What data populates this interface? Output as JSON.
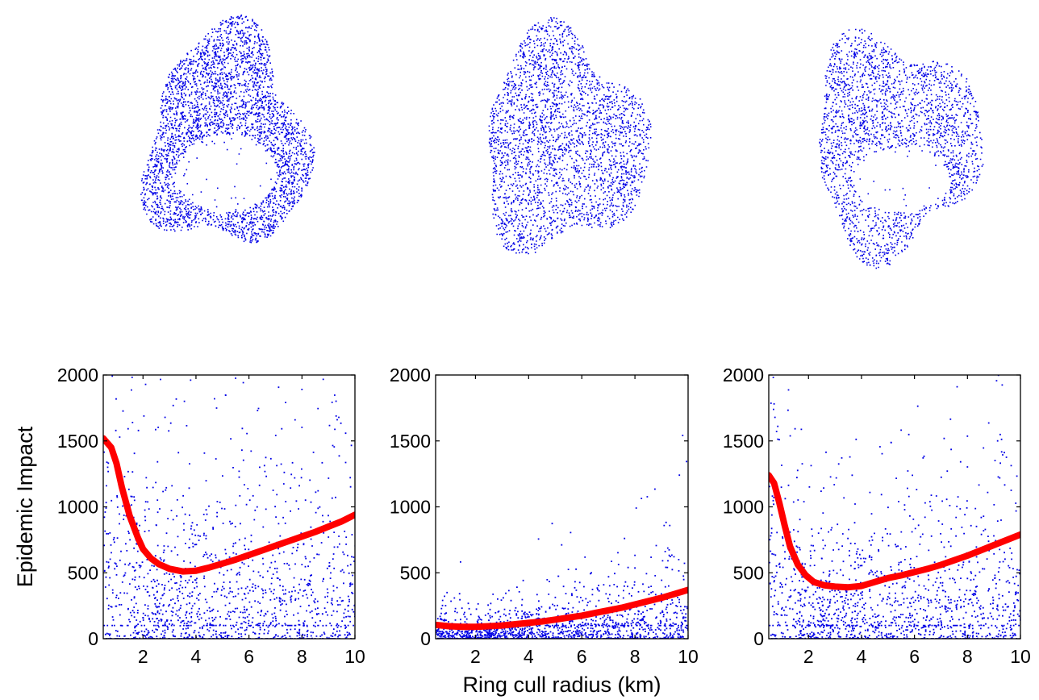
{
  "colors": {
    "points": "#0000e6",
    "curve": "#ff0000",
    "axes": "#000000",
    "background": "#ffffff"
  },
  "maps": [
    {
      "name": "map-1",
      "shape": "ring-with-hollow-center"
    },
    {
      "name": "map-2",
      "shape": "solid-blob"
    },
    {
      "name": "map-3",
      "shape": "ring-with-hollow-center"
    }
  ],
  "chart_data": [
    {
      "type": "scatter",
      "xlabel": "",
      "ylabel": "Epidemic Impact",
      "xlim": [
        0.5,
        10
      ],
      "ylim": [
        0,
        2000
      ],
      "xticks": [
        2,
        4,
        6,
        8,
        10
      ],
      "yticks": [
        0,
        500,
        1000,
        1500,
        2000
      ],
      "grid": false,
      "trend_line": {
        "x": [
          0.5,
          0.8,
          1.0,
          1.2,
          1.5,
          1.8,
          2.0,
          2.3,
          2.6,
          3.0,
          3.5,
          4.0,
          4.5,
          5.0,
          5.5,
          6.0,
          6.5,
          7.0,
          7.5,
          8.0,
          8.5,
          9.0,
          9.5,
          10.0
        ],
        "y": [
          1520,
          1450,
          1330,
          1150,
          930,
          770,
          680,
          610,
          565,
          530,
          510,
          515,
          540,
          570,
          600,
          635,
          670,
          705,
          740,
          775,
          810,
          850,
          890,
          940
        ]
      }
    },
    {
      "type": "scatter",
      "xlabel": "Ring cull radius (km)",
      "ylabel": "",
      "xlim": [
        0.5,
        10
      ],
      "ylim": [
        0,
        2000
      ],
      "xticks": [
        2,
        4,
        6,
        8,
        10
      ],
      "yticks": [
        0,
        500,
        1000,
        1500,
        2000
      ],
      "grid": false,
      "trend_line": {
        "x": [
          0.5,
          1.0,
          1.5,
          2.0,
          2.5,
          3.0,
          3.5,
          4.0,
          4.5,
          5.0,
          5.5,
          6.0,
          6.5,
          7.0,
          7.5,
          8.0,
          8.5,
          9.0,
          9.5,
          10.0
        ],
        "y": [
          105,
          95,
          90,
          90,
          95,
          100,
          110,
          120,
          130,
          145,
          160,
          175,
          195,
          215,
          235,
          260,
          285,
          310,
          340,
          370
        ]
      }
    },
    {
      "type": "scatter",
      "xlabel": "",
      "ylabel": "",
      "xlim": [
        0.5,
        10
      ],
      "ylim": [
        0,
        2000
      ],
      "xticks": [
        2,
        4,
        6,
        8,
        10
      ],
      "yticks": [
        0,
        500,
        1000,
        1500,
        2000
      ],
      "grid": false,
      "trend_line": {
        "x": [
          0.5,
          0.7,
          0.9,
          1.1,
          1.3,
          1.6,
          1.9,
          2.2,
          2.6,
          3.0,
          3.5,
          4.0,
          4.5,
          5.0,
          5.5,
          6.0,
          6.5,
          7.0,
          7.5,
          8.0,
          8.5,
          9.0,
          9.5,
          10.0
        ],
        "y": [
          1240,
          1180,
          1030,
          860,
          700,
          560,
          480,
          430,
          405,
          395,
          390,
          400,
          430,
          460,
          480,
          505,
          530,
          560,
          595,
          630,
          670,
          710,
          750,
          790
        ]
      }
    }
  ]
}
